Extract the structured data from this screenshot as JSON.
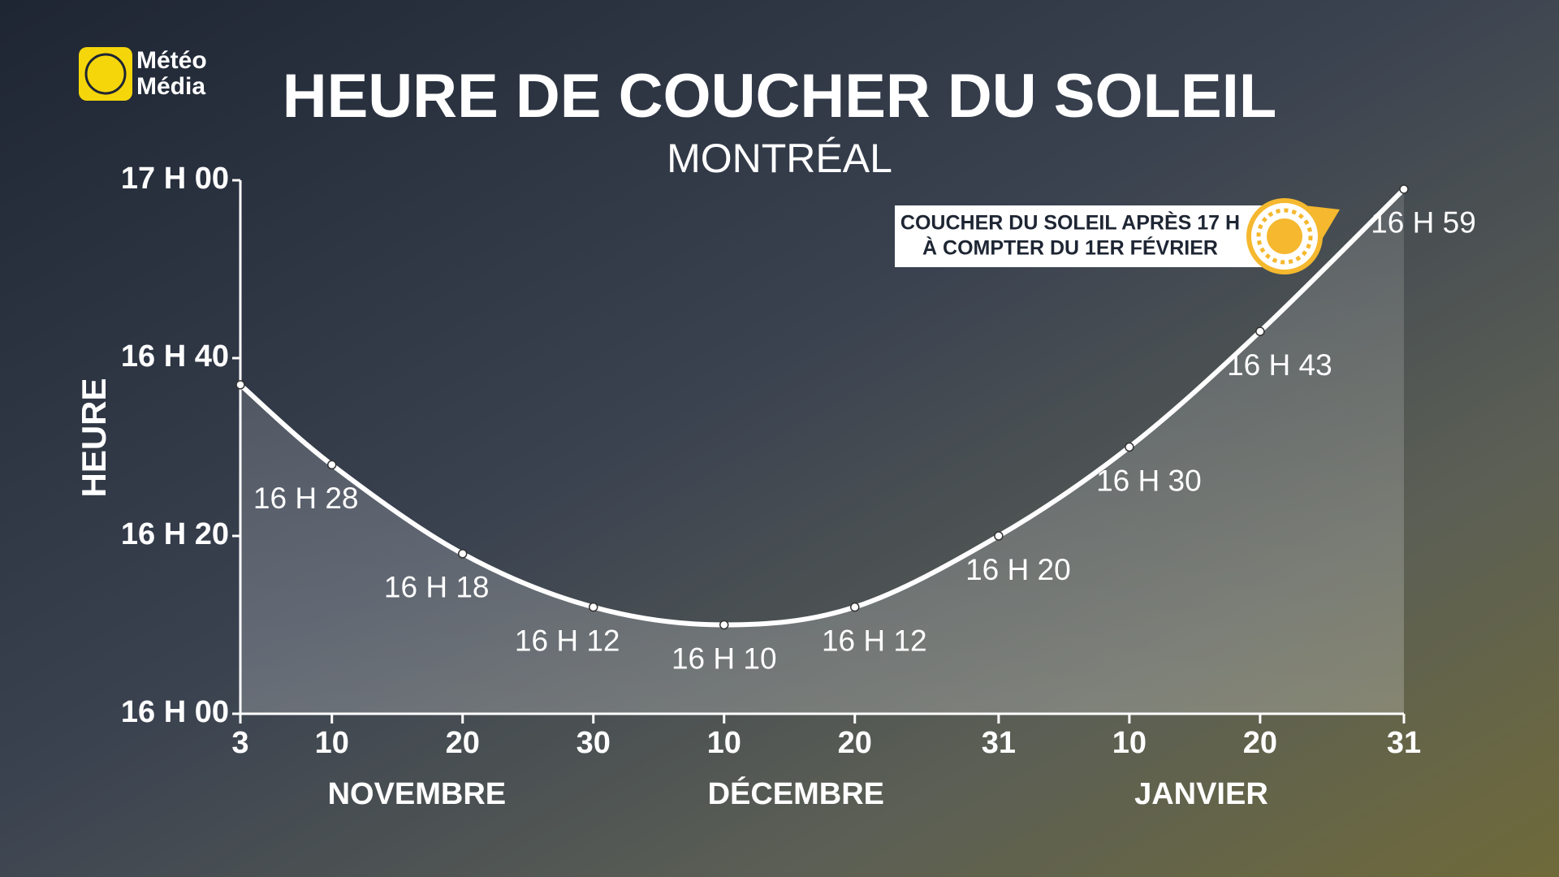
{
  "brand": {
    "line1": "Météo",
    "line2": "Média"
  },
  "chart_data": {
    "type": "line",
    "title": "HEURE DE COUCHER DU SOLEIL",
    "subtitle": "MONTRÉAL",
    "y_label": "HEURE",
    "annotation": {
      "line1": "COUCHER DU SOLEIL APRÈS 17 H",
      "line2": "À COMPTER DU 1ER FÉVRIER"
    },
    "x": [
      3,
      10,
      20,
      30,
      40,
      50,
      61,
      71,
      81,
      92
    ],
    "xlim": [
      3,
      92
    ],
    "xticks": [
      {
        "value": 3,
        "label": "3"
      },
      {
        "value": 10,
        "label": "10"
      },
      {
        "value": 20,
        "label": "20"
      },
      {
        "value": 30,
        "label": "30"
      },
      {
        "value": 40,
        "label": "10"
      },
      {
        "value": 50,
        "label": "20"
      },
      {
        "value": 61,
        "label": "31"
      },
      {
        "value": 71,
        "label": "10"
      },
      {
        "value": 81,
        "label": "20"
      },
      {
        "value": 92,
        "label": "31"
      }
    ],
    "x_groups": [
      {
        "label": "NOVEMBRE",
        "start": 0,
        "end": 30
      },
      {
        "label": "DÉCEMBRE",
        "start": 30,
        "end": 61
      },
      {
        "label": "JANVIER",
        "start": 61,
        "end": 92
      }
    ],
    "series": [
      {
        "name": "Montréal",
        "color": "#ffffff",
        "values": [
          997,
          988,
          978,
          972,
          970,
          972,
          980,
          990,
          1003,
          1019
        ],
        "value_labels": [
          null,
          "16 H 28",
          "16 H 18",
          "16 H 12",
          "16 H 10",
          "16 H 12",
          "16 H 20",
          "16 H 30",
          "16 H 43",
          "16 H 59"
        ]
      }
    ],
    "ylim": [
      960,
      1020
    ],
    "yticks": [
      {
        "value": 960,
        "label": "16 H 00"
      },
      {
        "value": 980,
        "label": "16 H 20"
      },
      {
        "value": 1000,
        "label": "16 H 40"
      },
      {
        "value": 1020,
        "label": "17 H 00"
      }
    ]
  }
}
